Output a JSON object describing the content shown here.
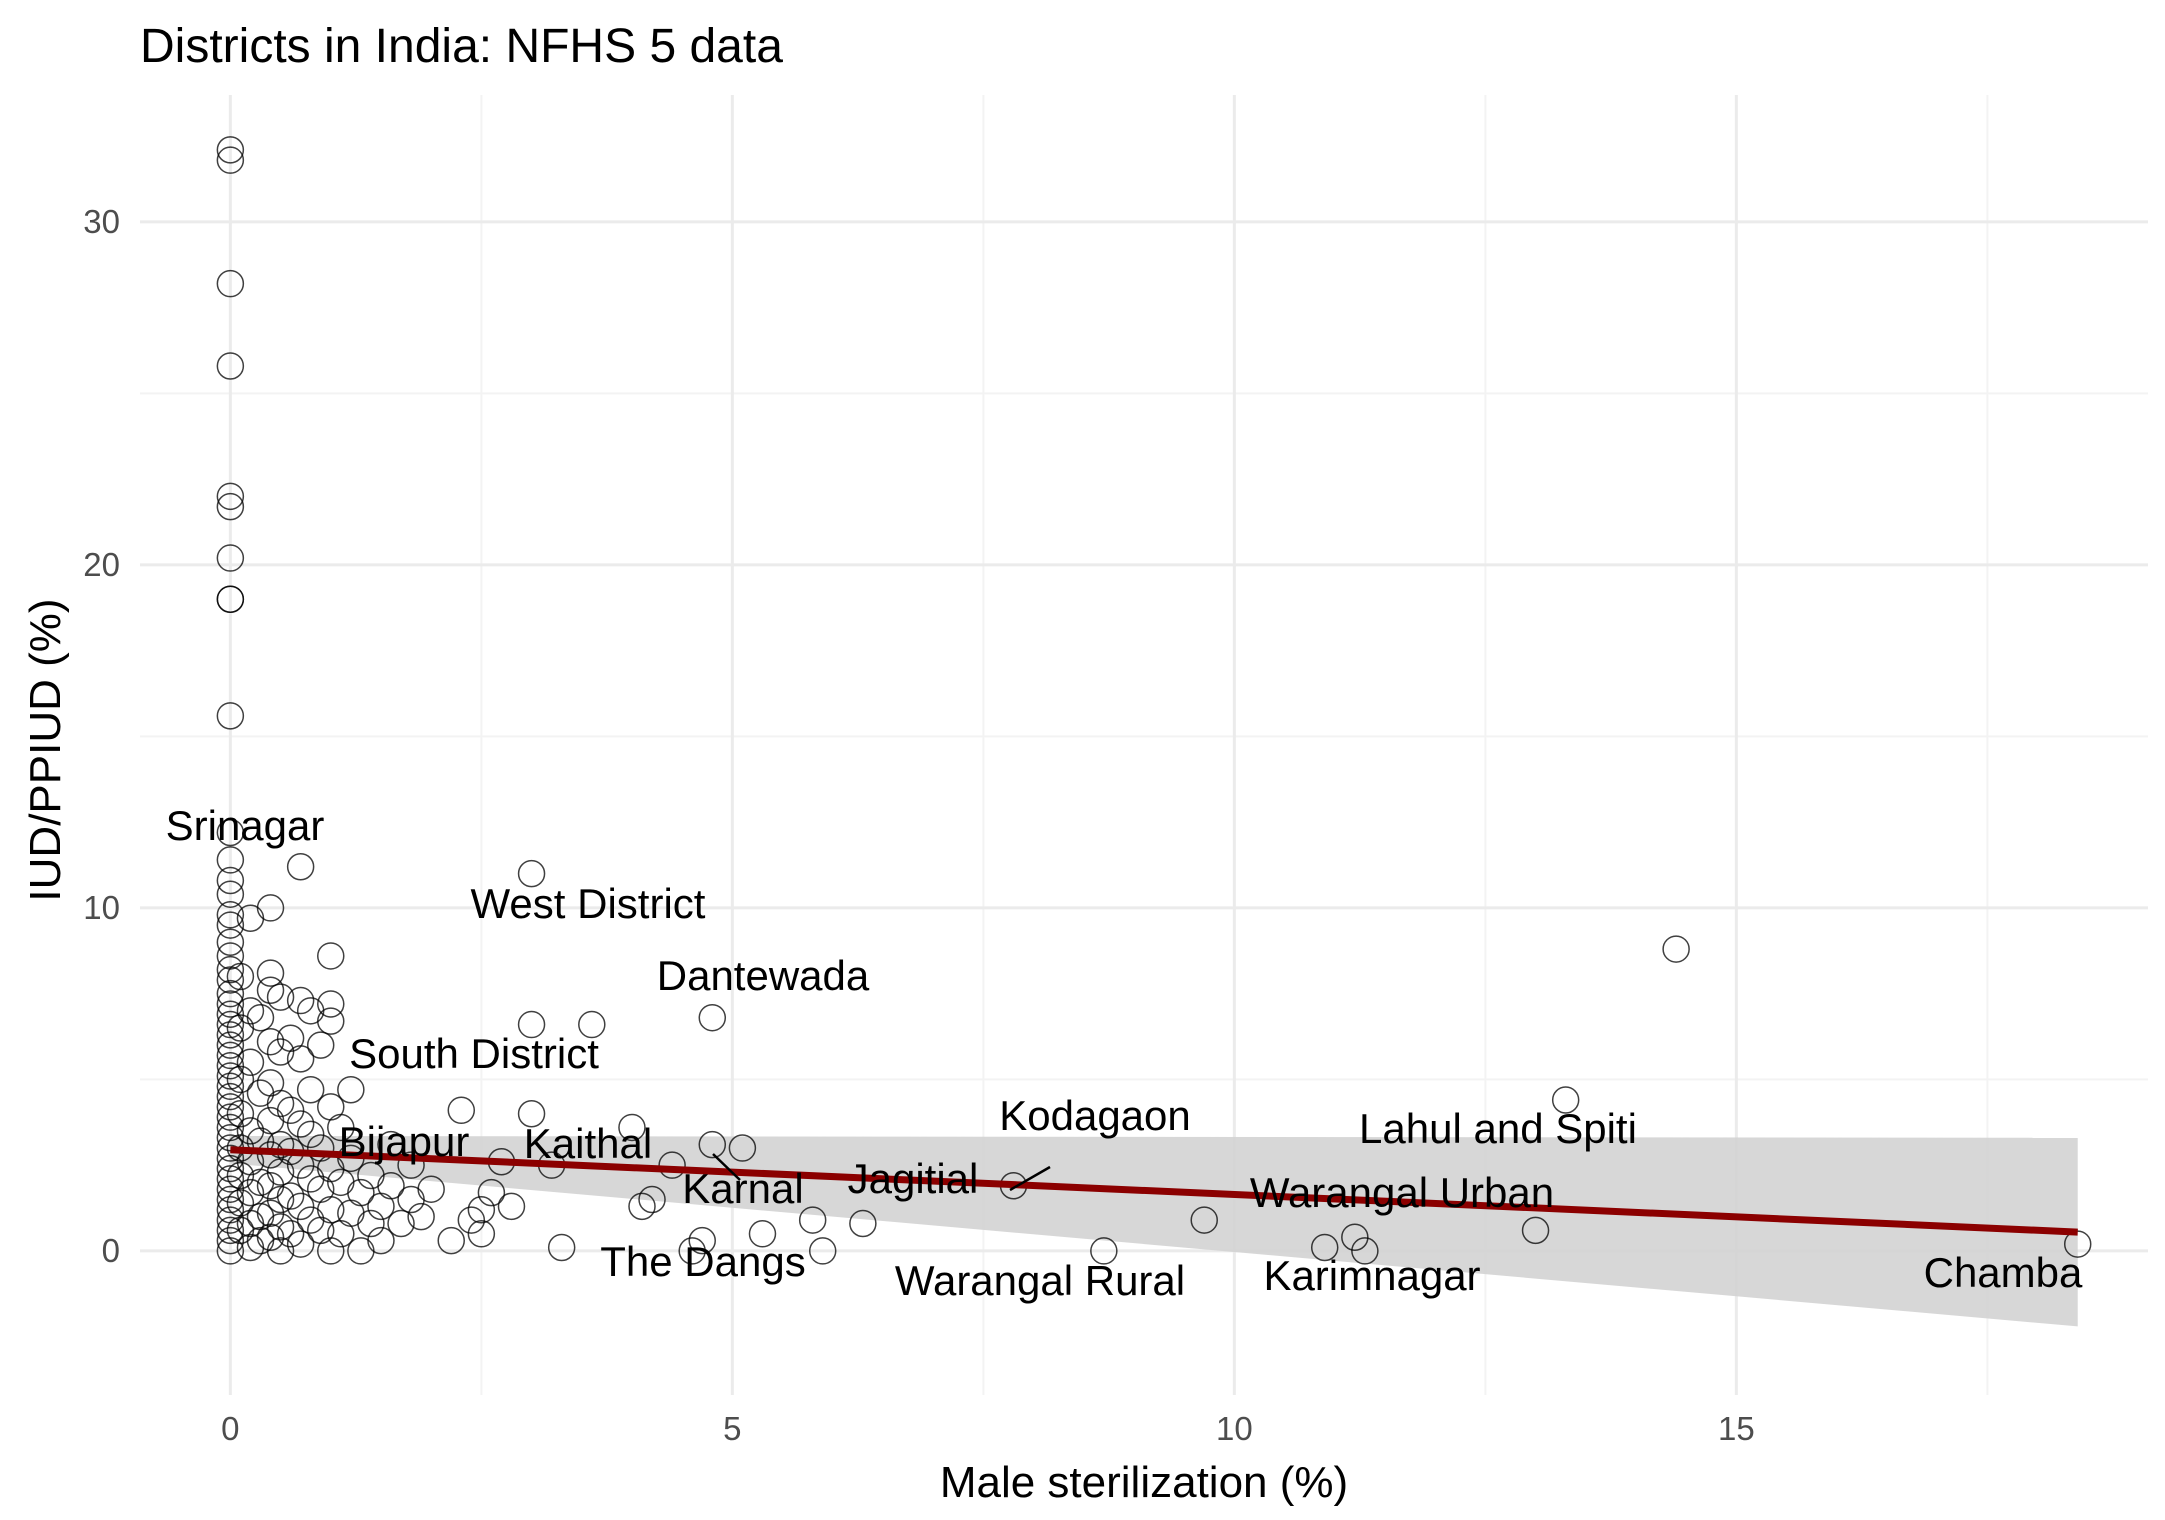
{
  "chart_data": {
    "type": "scatter",
    "title": "Districts in India: NFHS 5 data",
    "xlabel": "Male sterilization (%)",
    "ylabel": "IUD/PPIUD (%)",
    "xlim": [
      -0.9,
      19.1
    ],
    "ylim": [
      -4.2,
      33.7
    ],
    "x_ticks": [
      0,
      5,
      10,
      15
    ],
    "y_ticks": [
      0,
      10,
      20,
      30
    ],
    "grid": true,
    "colors": {
      "points": "#000000",
      "trend_line": "#8b0000",
      "confidence_band": "#d3d3d3"
    },
    "trend": {
      "x": [
        0,
        18.4
      ],
      "y": [
        2.95,
        0.55
      ],
      "ci_lower": [
        2.55,
        -2.2
      ],
      "ci_upper": [
        3.35,
        3.3
      ]
    },
    "labeled_points": [
      {
        "name": "Srinagar",
        "x": 0.0,
        "y": 12.2
      },
      {
        "name": "West District",
        "x": 3.0,
        "y": 11.0
      },
      {
        "name": "Dantewada",
        "x": 4.8,
        "y": 6.8
      },
      {
        "name": "South District",
        "x": 1.0,
        "y": 4.2
      },
      {
        "name": "Bijapur",
        "x": 1.6,
        "y": 3.1
      },
      {
        "name": "Kaithal",
        "x": 3.2,
        "y": 2.5
      },
      {
        "name": "Karnal",
        "x": 4.4,
        "y": 2.5
      },
      {
        "name": "Jagitial",
        "x": 6.3,
        "y": 0.8
      },
      {
        "name": "Kodagaon",
        "x": 7.8,
        "y": 1.9
      },
      {
        "name": "Lahul and Spiti",
        "x": 13.3,
        "y": 4.4
      },
      {
        "name": "Warangal Urban",
        "x": 13.0,
        "y": 0.6
      },
      {
        "name": "The Dangs",
        "x": 4.6,
        "y": 0.0
      },
      {
        "name": "Warangal Rural",
        "x": 8.7,
        "y": 0.0
      },
      {
        "name": "Karimnagar",
        "x": 11.3,
        "y": 0.0
      },
      {
        "name": "Chamba",
        "x": 18.4,
        "y": 0.2
      }
    ],
    "points": [
      [
        0,
        32.1
      ],
      [
        0,
        31.8
      ],
      [
        0,
        28.2
      ],
      [
        0,
        25.8
      ],
      [
        0,
        22.0
      ],
      [
        0,
        21.7
      ],
      [
        0,
        20.2
      ],
      [
        0,
        19.0
      ],
      [
        0,
        19.0
      ],
      [
        0,
        15.6
      ],
      [
        0,
        12.2
      ],
      [
        0,
        11.4
      ],
      [
        0,
        10.8
      ],
      [
        0,
        10.4
      ],
      [
        0,
        9.8
      ],
      [
        0,
        9.5
      ],
      [
        0,
        9.0
      ],
      [
        0,
        8.6
      ],
      [
        0,
        8.2
      ],
      [
        0,
        7.9
      ],
      [
        0,
        7.5
      ],
      [
        0,
        7.2
      ],
      [
        0,
        6.9
      ],
      [
        0,
        6.6
      ],
      [
        0,
        6.3
      ],
      [
        0,
        6.0
      ],
      [
        0,
        5.7
      ],
      [
        0,
        5.4
      ],
      [
        0,
        5.1
      ],
      [
        0,
        4.8
      ],
      [
        0,
        4.5
      ],
      [
        0,
        4.2
      ],
      [
        0,
        3.9
      ],
      [
        0,
        3.6
      ],
      [
        0,
        3.3
      ],
      [
        0,
        3.0
      ],
      [
        0,
        2.7
      ],
      [
        0,
        2.4
      ],
      [
        0,
        2.1
      ],
      [
        0,
        1.8
      ],
      [
        0,
        1.5
      ],
      [
        0,
        1.2
      ],
      [
        0,
        0.9
      ],
      [
        0,
        0.6
      ],
      [
        0,
        0.3
      ],
      [
        0,
        0.0
      ],
      [
        0.1,
        8.0
      ],
      [
        0.1,
        6.5
      ],
      [
        0.1,
        5.0
      ],
      [
        0.1,
        4.0
      ],
      [
        0.1,
        3.0
      ],
      [
        0.1,
        2.2
      ],
      [
        0.1,
        1.4
      ],
      [
        0.1,
        0.6
      ],
      [
        0.2,
        9.7
      ],
      [
        0.2,
        7.0
      ],
      [
        0.2,
        5.5
      ],
      [
        0.2,
        3.5
      ],
      [
        0.2,
        2.6
      ],
      [
        0.2,
        1.7
      ],
      [
        0.2,
        0.8
      ],
      [
        0.2,
        0.1
      ],
      [
        0.3,
        6.8
      ],
      [
        0.3,
        4.6
      ],
      [
        0.3,
        3.2
      ],
      [
        0.3,
        2.0
      ],
      [
        0.3,
        1.0
      ],
      [
        0.3,
        0.3
      ],
      [
        0.4,
        10.0
      ],
      [
        0.4,
        8.1
      ],
      [
        0.4,
        7.6
      ],
      [
        0.4,
        6.1
      ],
      [
        0.4,
        4.9
      ],
      [
        0.4,
        3.8
      ],
      [
        0.4,
        2.8
      ],
      [
        0.4,
        1.9
      ],
      [
        0.4,
        1.1
      ],
      [
        0.4,
        0.4
      ],
      [
        0.5,
        7.4
      ],
      [
        0.5,
        5.8
      ],
      [
        0.5,
        4.3
      ],
      [
        0.5,
        3.1
      ],
      [
        0.5,
        2.3
      ],
      [
        0.5,
        1.5
      ],
      [
        0.5,
        0.7
      ],
      [
        0.5,
        0.0
      ],
      [
        0.6,
        6.2
      ],
      [
        0.6,
        4.1
      ],
      [
        0.6,
        2.9
      ],
      [
        0.6,
        1.6
      ],
      [
        0.6,
        0.5
      ],
      [
        0.7,
        11.2
      ],
      [
        0.7,
        7.3
      ],
      [
        0.7,
        5.6
      ],
      [
        0.7,
        3.7
      ],
      [
        0.7,
        2.5
      ],
      [
        0.7,
        1.3
      ],
      [
        0.7,
        0.2
      ],
      [
        0.8,
        7.0
      ],
      [
        0.8,
        4.7
      ],
      [
        0.8,
        3.4
      ],
      [
        0.8,
        2.1
      ],
      [
        0.8,
        0.9
      ],
      [
        0.9,
        6.0
      ],
      [
        0.9,
        3.0
      ],
      [
        0.9,
        1.8
      ],
      [
        0.9,
        0.6
      ],
      [
        1.0,
        8.6
      ],
      [
        1.0,
        7.2
      ],
      [
        1.0,
        6.7
      ],
      [
        1.0,
        4.2
      ],
      [
        1.0,
        2.4
      ],
      [
        1.0,
        1.2
      ],
      [
        1.0,
        0.0
      ],
      [
        1.1,
        3.6
      ],
      [
        1.1,
        2.0
      ],
      [
        1.1,
        0.5
      ],
      [
        1.2,
        4.7
      ],
      [
        1.2,
        2.7
      ],
      [
        1.2,
        1.1
      ],
      [
        1.3,
        1.7
      ],
      [
        1.3,
        0.0
      ],
      [
        1.4,
        2.2
      ],
      [
        1.4,
        0.8
      ],
      [
        1.5,
        1.3
      ],
      [
        1.5,
        0.3
      ],
      [
        1.6,
        3.1
      ],
      [
        1.6,
        1.9
      ],
      [
        1.7,
        0.8
      ],
      [
        1.8,
        2.5
      ],
      [
        1.8,
        1.5
      ],
      [
        1.9,
        1.0
      ],
      [
        2.0,
        1.8
      ],
      [
        2.2,
        0.3
      ],
      [
        2.3,
        4.1
      ],
      [
        2.4,
        0.9
      ],
      [
        2.5,
        1.2
      ],
      [
        2.5,
        0.5
      ],
      [
        2.6,
        1.7
      ],
      [
        2.7,
        2.6
      ],
      [
        2.8,
        1.3
      ],
      [
        3.0,
        11.0
      ],
      [
        3.0,
        6.6
      ],
      [
        3.0,
        4.0
      ],
      [
        3.2,
        2.5
      ],
      [
        3.3,
        0.1
      ],
      [
        3.6,
        6.6
      ],
      [
        4.0,
        3.6
      ],
      [
        4.1,
        1.3
      ],
      [
        4.2,
        1.5
      ],
      [
        4.4,
        2.5
      ],
      [
        4.6,
        0.0
      ],
      [
        4.7,
        0.3
      ],
      [
        4.8,
        6.8
      ],
      [
        4.8,
        3.1
      ],
      [
        5.1,
        3.0
      ],
      [
        5.3,
        0.5
      ],
      [
        5.8,
        0.9
      ],
      [
        5.9,
        0.0
      ],
      [
        6.3,
        0.8
      ],
      [
        7.8,
        1.9
      ],
      [
        8.7,
        0.0
      ],
      [
        9.7,
        0.9
      ],
      [
        10.9,
        0.1
      ],
      [
        11.2,
        0.4
      ],
      [
        11.3,
        0.0
      ],
      [
        13.0,
        0.6
      ],
      [
        13.3,
        4.4
      ],
      [
        14.4,
        8.8
      ],
      [
        18.4,
        0.2
      ]
    ]
  }
}
